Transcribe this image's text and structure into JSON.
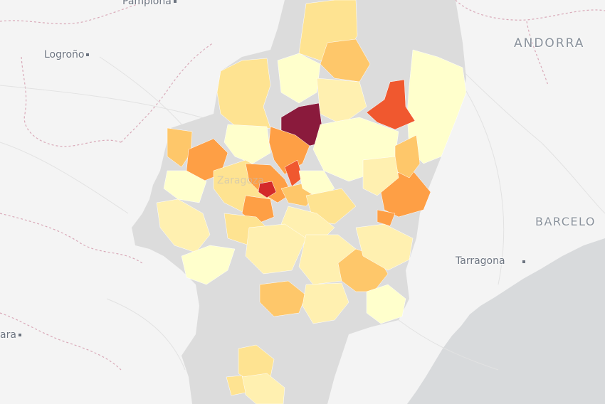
{
  "map": {
    "colors": {
      "land": "#f4f4f4",
      "sea": "#d8dadc",
      "outside_region": "#dedede",
      "no_data": "#dcdcdc",
      "scale_1": "#ffffcc",
      "scale_2": "#fff0b0",
      "scale_3": "#fee391",
      "scale_4": "#fec76a",
      "scale_5": "#fe9f45",
      "scale_6": "#f0582f",
      "scale_7": "#d42a2a",
      "scale_8": "#8a1a3c"
    },
    "labels": {
      "pamplona": "Pamplona",
      "logrono": "Logroño",
      "andorra": "ANDORRA",
      "barcelona": "BARCELO",
      "tarragona": "Tarragona",
      "zaragoza": "Zaragoza",
      "left_edge_city": "ara"
    }
  }
}
